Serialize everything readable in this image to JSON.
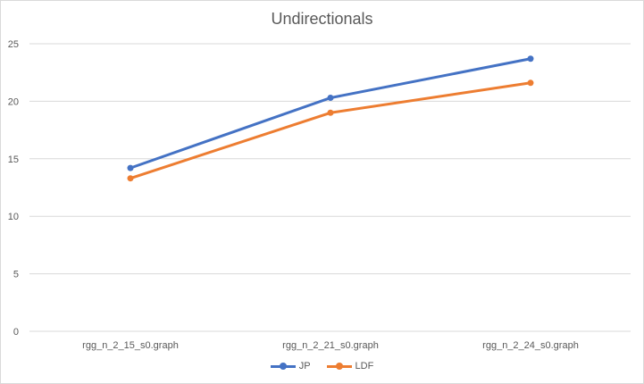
{
  "chart_data": {
    "type": "line",
    "title": "Undirectionals",
    "xlabel": "",
    "ylabel": "",
    "categories": [
      "rgg_n_2_15_s0.graph",
      "rgg_n_2_21_s0.graph",
      "rgg_n_2_24_s0.graph"
    ],
    "series": [
      {
        "name": "JP",
        "values": [
          14.2,
          20.3,
          23.7
        ],
        "color": "#4472c4"
      },
      {
        "name": "LDF",
        "values": [
          13.3,
          19.0,
          21.6
        ],
        "color": "#ed7d31"
      }
    ],
    "ylim": [
      0,
      25
    ],
    "yticks": [
      "0",
      "5",
      "10",
      "15",
      "20",
      "25"
    ],
    "grid": true,
    "legend_position": "bottom",
    "gridline_color": "#d9d9d9",
    "text_color": "#595959"
  }
}
